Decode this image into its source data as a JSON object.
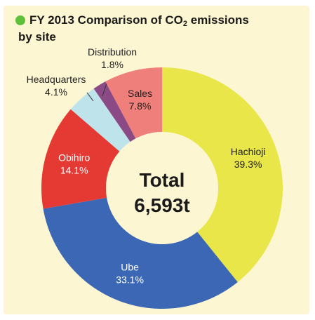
{
  "chart_data": {
    "type": "pie",
    "title_parts": [
      "FY 2013 Comparison of CO",
      "2",
      " emissions",
      "by site"
    ],
    "center_label": {
      "line1": "Total",
      "line2": "6,593t"
    },
    "slices": [
      {
        "name": "Hachioji",
        "value": 39.3,
        "value_label": "39.3%",
        "color": "#e9e64a"
      },
      {
        "name": "Ube",
        "value": 33.1,
        "value_label": "33.1%",
        "color": "#3b67b5"
      },
      {
        "name": "Obihiro",
        "value": 14.1,
        "value_label": "14.1%",
        "color": "#e53a33"
      },
      {
        "name": "Headquarters",
        "value": 4.1,
        "value_label": "4.1%",
        "color": "#bfe3ea"
      },
      {
        "name": "Distribution",
        "value": 1.8,
        "value_label": "1.8%",
        "color": "#8b4a86"
      },
      {
        "name": "Sales",
        "value": 7.8,
        "value_label": "7.8%",
        "color": "#ef7f7a"
      }
    ],
    "colors": {
      "center": "#fdf6d2",
      "title_bullet": "#5fc03a"
    }
  }
}
